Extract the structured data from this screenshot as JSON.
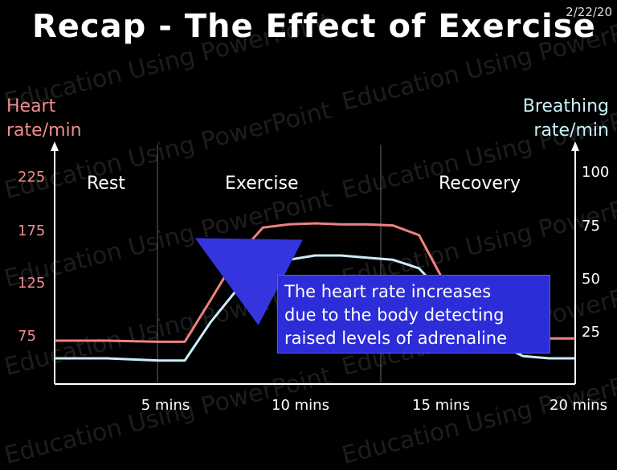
{
  "slide": {
    "title": "Recap - The Effect of Exercise",
    "date": "2/22/20",
    "watermark": "Education Using PowerPoint"
  },
  "chart_data": {
    "type": "line",
    "left_axis_label": [
      "Heart",
      "rate/min"
    ],
    "right_axis_label": [
      "Breathing",
      "rate/min"
    ],
    "left_ticks": [
      75,
      125,
      175,
      225
    ],
    "right_ticks": [
      25,
      50,
      75,
      100
    ],
    "x_ticks": [
      "5 mins",
      "10 mins",
      "15 mins",
      "20 mins"
    ],
    "phases": [
      "Rest",
      "Exercise",
      "Recovery"
    ],
    "xlim": [
      0,
      20
    ],
    "series": [
      {
        "axis": "left",
        "color": "#f08080",
        "x": [
          0,
          2,
          4,
          5,
          6,
          7,
          8,
          9,
          10,
          11,
          12,
          13,
          14,
          15,
          16,
          17,
          18,
          19,
          20
        ],
        "y": [
          72,
          72,
          71,
          71,
          110,
          150,
          177,
          180,
          181,
          180,
          180,
          179,
          170,
          125,
          95,
          80,
          75,
          74,
          74
        ]
      },
      {
        "axis": "right",
        "color": "#c8eef8",
        "x": [
          0,
          2,
          4,
          5,
          6,
          7,
          8,
          9,
          10,
          11,
          12,
          13,
          14,
          15,
          16,
          17,
          18,
          19,
          20
        ],
        "y": [
          13,
          13,
          12,
          12,
          30,
          45,
          55,
          59,
          61,
          61,
          60,
          59,
          55,
          42,
          28,
          20,
          14,
          13,
          13
        ]
      }
    ],
    "annotation": {
      "lines": [
        "The heart rate increases",
        "due to the body detecting",
        "raised levels of adrenaline"
      ],
      "background": "#2c2cd8"
    }
  }
}
